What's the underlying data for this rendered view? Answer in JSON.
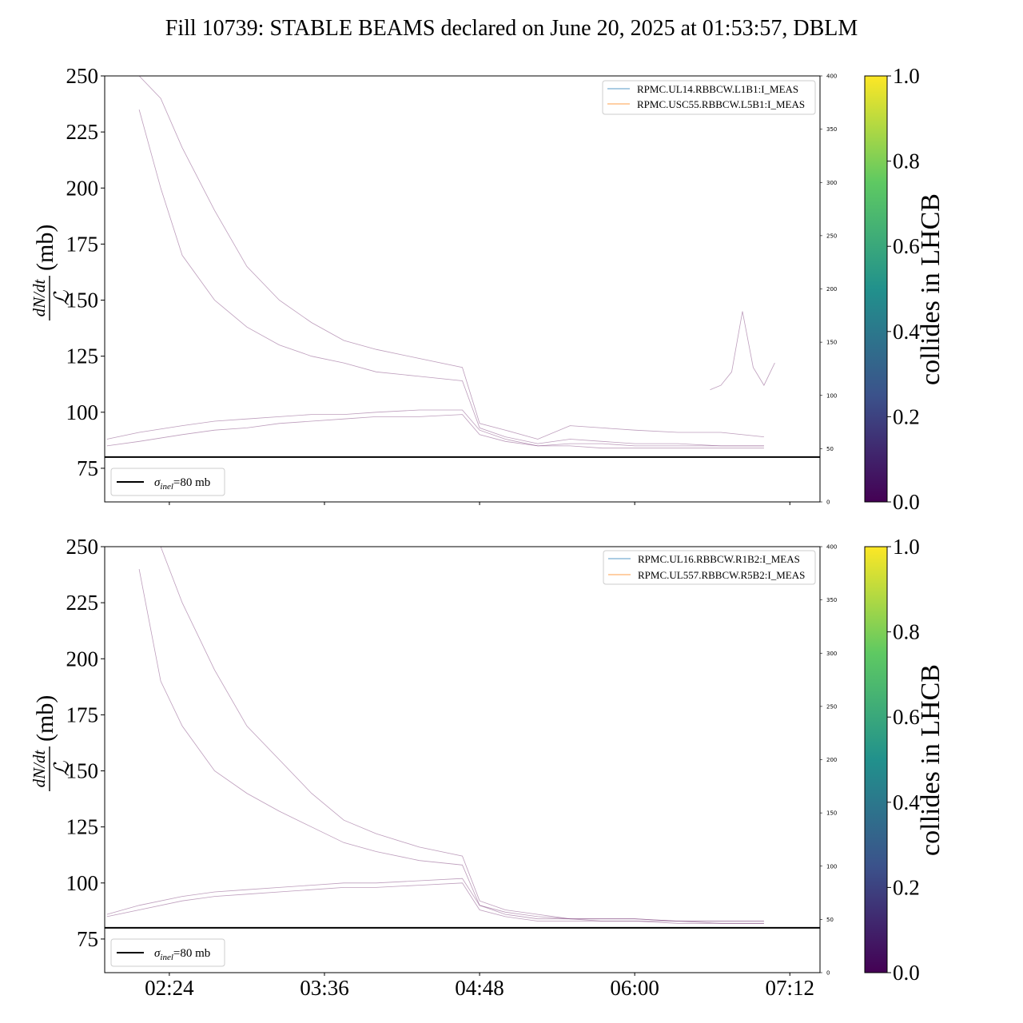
{
  "title": "Fill 10739: STABLE BEAMS declared on June 20, 2025 at 01:53:57, DBLM",
  "colorbar": {
    "label": "collides in LHCB",
    "ticks": [
      "0.0",
      "0.2",
      "0.4",
      "0.6",
      "0.8",
      "1.0"
    ],
    "colormap": [
      "#440154",
      "#3b528b",
      "#21918c",
      "#5ec962",
      "#fde725"
    ]
  },
  "ylabel": {
    "numerator": "dN/dt",
    "denominator": "ℒ",
    "unit": "(mb)"
  },
  "sigma_legend": {
    "prefix": "σ",
    "subscript": "inel",
    "suffix": "=80 mb"
  },
  "chart_data": [
    {
      "type": "line",
      "title": "",
      "xlabel": "",
      "ylabel": "dN/dt / ℒ (mb)",
      "ylim": [
        60,
        250
      ],
      "y_ticks": [
        "75",
        "100",
        "125",
        "150",
        "175",
        "200",
        "225",
        "250"
      ],
      "y2lim": [
        0,
        400
      ],
      "y2_ticks": [
        "0",
        "50",
        "100",
        "150",
        "200",
        "250",
        "300",
        "350",
        "400"
      ],
      "xlim": [
        "01:54",
        "07:26"
      ],
      "x_ticks": [
        "02:24",
        "03:36",
        "04:48",
        "06:00",
        "07:12"
      ],
      "x_tick_labels_visible": false,
      "legend": [
        "RPMC.UL14.RBBCW.L1B1:I_MEAS",
        "RPMC.USC55.RBBCW.L5B1:I_MEAS"
      ],
      "legend_colors": [
        "#1f77b4",
        "#ff7f0e"
      ],
      "line_color": "#7b3b7a",
      "hline": {
        "y": 80,
        "label": "σinel=80 mb",
        "color": "#000000"
      },
      "series": [
        {
          "x": [
            "02:10",
            "02:20",
            "02:30",
            "02:45",
            "03:00",
            "03:15",
            "03:30",
            "03:45",
            "04:00",
            "04:20",
            "04:40",
            "04:48",
            "05:00",
            "05:15",
            "05:30",
            "05:45",
            "06:00",
            "06:20",
            "06:40",
            "07:00"
          ],
          "values": [
            250,
            240,
            218,
            190,
            165,
            150,
            140,
            132,
            128,
            124,
            120,
            95,
            92,
            88,
            94,
            93,
            92,
            91,
            91,
            89
          ]
        },
        {
          "x": [
            "02:10",
            "02:20",
            "02:30",
            "02:45",
            "03:00",
            "03:15",
            "03:30",
            "03:45",
            "04:00",
            "04:20",
            "04:40",
            "04:48",
            "05:00",
            "05:15",
            "05:30",
            "05:45",
            "06:00",
            "06:20",
            "06:40",
            "07:00"
          ],
          "values": [
            235,
            200,
            170,
            150,
            138,
            130,
            125,
            122,
            118,
            116,
            114,
            93,
            89,
            86,
            88,
            87,
            86,
            86,
            85,
            85
          ]
        },
        {
          "x": [
            "01:55",
            "02:10",
            "02:30",
            "02:45",
            "03:00",
            "03:15",
            "03:30",
            "03:45",
            "04:00",
            "04:20",
            "04:40",
            "04:48",
            "05:00",
            "05:15",
            "05:30",
            "05:45",
            "06:00",
            "06:20",
            "06:40",
            "07:00"
          ],
          "values": [
            88,
            91,
            94,
            96,
            97,
            98,
            99,
            99,
            100,
            101,
            101,
            92,
            88,
            85,
            86,
            86,
            85,
            85,
            85,
            85
          ]
        },
        {
          "x": [
            "01:55",
            "02:10",
            "02:30",
            "02:45",
            "03:00",
            "03:15",
            "03:30",
            "03:45",
            "04:00",
            "04:20",
            "04:40",
            "04:48",
            "05:00",
            "05:15",
            "05:30",
            "05:45",
            "06:00",
            "06:20",
            "06:40",
            "07:00"
          ],
          "values": [
            85,
            87,
            90,
            92,
            93,
            95,
            96,
            97,
            98,
            98,
            99,
            90,
            87,
            85,
            85,
            84,
            84,
            84,
            84,
            84
          ]
        },
        {
          "x": [
            "06:35",
            "06:40",
            "06:45",
            "06:50",
            "06:55",
            "07:00",
            "07:05"
          ],
          "values": [
            110,
            112,
            118,
            145,
            120,
            112,
            122
          ]
        }
      ]
    },
    {
      "type": "line",
      "title": "",
      "xlabel": "",
      "ylabel": "dN/dt / ℒ (mb)",
      "ylim": [
        60,
        250
      ],
      "y_ticks": [
        "75",
        "100",
        "125",
        "150",
        "175",
        "200",
        "225",
        "250"
      ],
      "y2lim": [
        0,
        400
      ],
      "y2_ticks": [
        "0",
        "50",
        "100",
        "150",
        "200",
        "250",
        "300",
        "350",
        "400"
      ],
      "xlim": [
        "01:54",
        "07:26"
      ],
      "x_ticks": [
        "02:24",
        "03:36",
        "04:48",
        "06:00",
        "07:12"
      ],
      "x_tick_labels_visible": true,
      "legend": [
        "RPMC.UL16.RBBCW.R1B2:I_MEAS",
        "RPMC.UL557.RBBCW.R5B2:I_MEAS"
      ],
      "legend_colors": [
        "#1f77b4",
        "#ff7f0e"
      ],
      "line_color": "#7b3b7a",
      "hline": {
        "y": 80,
        "label": "σinel=80 mb",
        "color": "#000000"
      },
      "series": [
        {
          "x": [
            "02:10",
            "02:20",
            "02:30",
            "02:45",
            "03:00",
            "03:15",
            "03:30",
            "03:45",
            "04:00",
            "04:20",
            "04:40",
            "04:48",
            "05:00",
            "05:15",
            "05:30",
            "05:45",
            "06:00",
            "06:20",
            "06:40",
            "07:00"
          ],
          "values": [
            250,
            250,
            225,
            195,
            170,
            155,
            140,
            128,
            122,
            116,
            112,
            92,
            88,
            86,
            84,
            84,
            84,
            83,
            83,
            83
          ]
        },
        {
          "x": [
            "02:10",
            "02:20",
            "02:30",
            "02:45",
            "03:00",
            "03:15",
            "03:30",
            "03:45",
            "04:00",
            "04:20",
            "04:40",
            "04:48",
            "05:00",
            "05:15",
            "05:30",
            "05:45",
            "06:00",
            "06:20",
            "06:40",
            "07:00"
          ],
          "values": [
            240,
            190,
            170,
            150,
            140,
            132,
            125,
            118,
            114,
            110,
            108,
            90,
            87,
            85,
            84,
            83,
            83,
            83,
            82,
            82
          ]
        },
        {
          "x": [
            "01:55",
            "02:10",
            "02:30",
            "02:45",
            "03:00",
            "03:15",
            "03:30",
            "03:45",
            "04:00",
            "04:20",
            "04:40",
            "04:48",
            "05:00",
            "05:15",
            "05:30",
            "05:45",
            "06:00",
            "06:20",
            "06:40",
            "07:00"
          ],
          "values": [
            86,
            90,
            94,
            96,
            97,
            98,
            99,
            100,
            100,
            101,
            102,
            90,
            86,
            84,
            84,
            84,
            84,
            83,
            83,
            83
          ]
        },
        {
          "x": [
            "01:55",
            "02:10",
            "02:30",
            "02:45",
            "03:00",
            "03:15",
            "03:30",
            "03:45",
            "04:00",
            "04:20",
            "04:40",
            "04:48",
            "05:00",
            "05:15",
            "05:30",
            "05:45",
            "06:00",
            "06:20",
            "06:40",
            "07:00"
          ],
          "values": [
            85,
            88,
            92,
            94,
            95,
            96,
            97,
            98,
            98,
            99,
            100,
            88,
            85,
            83,
            83,
            83,
            83,
            82,
            82,
            82
          ]
        }
      ]
    }
  ]
}
